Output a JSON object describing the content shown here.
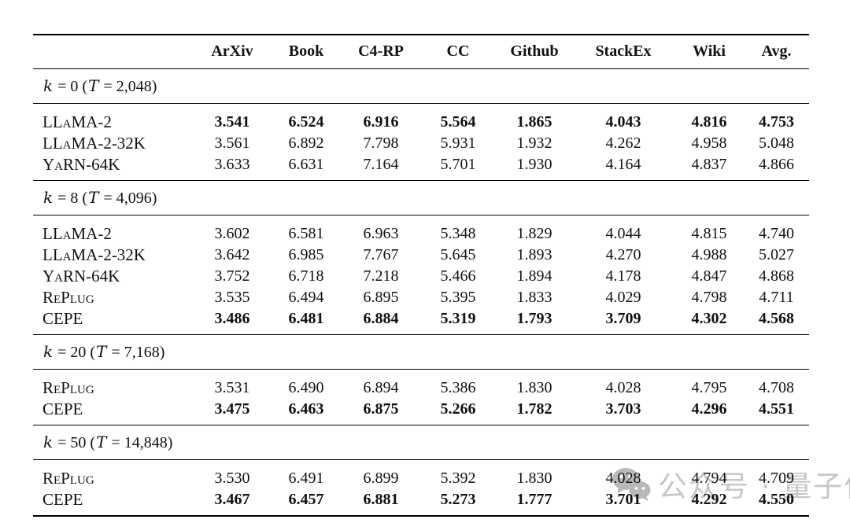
{
  "table": {
    "model_column_header": "",
    "columns": [
      "ArXiv",
      "Book",
      "C4-RP",
      "CC",
      "Github",
      "StackEx",
      "Wiki",
      "Avg."
    ],
    "sections": [
      {
        "label_parts": {
          "k_var": "k",
          "k_eq": " = 0 (",
          "t_var": "T",
          "t_eq": " = 2,048)"
        },
        "rows": [
          {
            "model": "LLaMA-2",
            "bold": true,
            "values": [
              "3.541",
              "6.524",
              "6.916",
              "5.564",
              "1.865",
              "4.043",
              "4.816",
              "4.753"
            ]
          },
          {
            "model": "LLaMA-2-32K",
            "bold": false,
            "values": [
              "3.561",
              "6.892",
              "7.798",
              "5.931",
              "1.932",
              "4.262",
              "4.958",
              "5.048"
            ]
          },
          {
            "model": "YaRN-64K",
            "bold": false,
            "values": [
              "3.633",
              "6.631",
              "7.164",
              "5.701",
              "1.930",
              "4.164",
              "4.837",
              "4.866"
            ]
          }
        ]
      },
      {
        "label_parts": {
          "k_var": "k",
          "k_eq": " = 8 (",
          "t_var": "T",
          "t_eq": " = 4,096)"
        },
        "rows": [
          {
            "model": "LLaMA-2",
            "bold": false,
            "values": [
              "3.602",
              "6.581",
              "6.963",
              "5.348",
              "1.829",
              "4.044",
              "4.815",
              "4.740"
            ]
          },
          {
            "model": "LLaMA-2-32K",
            "bold": false,
            "values": [
              "3.642",
              "6.985",
              "7.767",
              "5.645",
              "1.893",
              "4.270",
              "4.988",
              "5.027"
            ]
          },
          {
            "model": "YaRN-64K",
            "bold": false,
            "values": [
              "3.752",
              "6.718",
              "7.218",
              "5.466",
              "1.894",
              "4.178",
              "4.847",
              "4.868"
            ]
          },
          {
            "model": "RePlug",
            "bold": false,
            "values": [
              "3.535",
              "6.494",
              "6.895",
              "5.395",
              "1.833",
              "4.029",
              "4.798",
              "4.711"
            ]
          },
          {
            "model": "CEPE",
            "bold": true,
            "values": [
              "3.486",
              "6.481",
              "6.884",
              "5.319",
              "1.793",
              "3.709",
              "4.302",
              "4.568"
            ]
          }
        ]
      },
      {
        "label_parts": {
          "k_var": "k",
          "k_eq": " = 20 (",
          "t_var": "T",
          "t_eq": " = 7,168)"
        },
        "rows": [
          {
            "model": "RePlug",
            "bold": false,
            "values": [
              "3.531",
              "6.490",
              "6.894",
              "5.386",
              "1.830",
              "4.028",
              "4.795",
              "4.708"
            ]
          },
          {
            "model": "CEPE",
            "bold": true,
            "values": [
              "3.475",
              "6.463",
              "6.875",
              "5.266",
              "1.782",
              "3.703",
              "4.296",
              "4.551"
            ]
          }
        ]
      },
      {
        "label_parts": {
          "k_var": "k",
          "k_eq": " = 50 (",
          "t_var": "T",
          "t_eq": " = 14,848)"
        },
        "rows": [
          {
            "model": "RePlug",
            "bold": false,
            "values": [
              "3.530",
              "6.491",
              "6.899",
              "5.392",
              "1.830",
              "4.028",
              "4.794",
              "4.709"
            ]
          },
          {
            "model": "CEPE",
            "bold": true,
            "values": [
              "3.467",
              "6.457",
              "6.881",
              "5.273",
              "1.777",
              "3.701",
              "4.292",
              "4.550"
            ]
          }
        ]
      }
    ]
  },
  "watermark": {
    "text": "公众号 · 量子位",
    "text_color": "#c7c7c7",
    "icon_color": "#b9b9b9",
    "icon": "wechat-icon"
  }
}
